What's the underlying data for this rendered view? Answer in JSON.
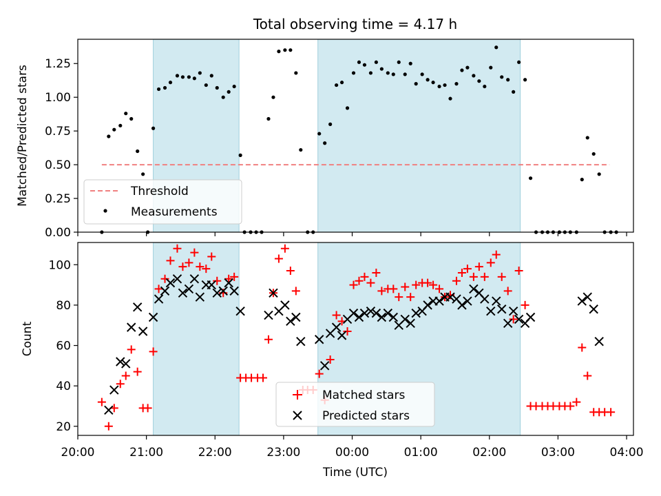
{
  "chart_data": [
    {
      "type": "scatter",
      "title": "Total observing time = 4.17 h",
      "ylabel": "Matched/Predicted stars",
      "ylim": [
        0,
        1.43
      ],
      "yticks": [
        0.0,
        0.25,
        0.5,
        0.75,
        1.0,
        1.25
      ],
      "ytick_labels": [
        "0.00",
        "0.25",
        "0.50",
        "0.75",
        "1.00",
        "1.25"
      ],
      "xlim_hours": [
        20.0,
        28.1
      ],
      "x_unit": "hours UTC since 20:00 of start day (values >24 are after midnight)",
      "shaded_intervals": [
        [
          21.1,
          22.35
        ],
        [
          23.5,
          26.45
        ]
      ],
      "shade_color": "#add8e6",
      "legend": {
        "position": "lower-left",
        "entries": [
          "Threshold",
          "Measurements"
        ]
      },
      "threshold": {
        "label": "Threshold",
        "value": 0.5,
        "x_range": [
          20.35,
          27.75
        ],
        "color": "#f08080"
      },
      "measurements": {
        "label": "Measurements",
        "color": "#000000",
        "points": [
          [
            20.35,
            0.0
          ],
          [
            20.45,
            0.71
          ],
          [
            20.53,
            0.76
          ],
          [
            20.62,
            0.79
          ],
          [
            20.7,
            0.88
          ],
          [
            20.78,
            0.84
          ],
          [
            20.87,
            0.6
          ],
          [
            20.95,
            0.43
          ],
          [
            21.02,
            0.0
          ],
          [
            21.1,
            0.77
          ],
          [
            21.18,
            1.06
          ],
          [
            21.27,
            1.07
          ],
          [
            21.35,
            1.11
          ],
          [
            21.45,
            1.16
          ],
          [
            21.53,
            1.15
          ],
          [
            21.62,
            1.15
          ],
          [
            21.7,
            1.14
          ],
          [
            21.78,
            1.18
          ],
          [
            21.87,
            1.09
          ],
          [
            21.95,
            1.16
          ],
          [
            22.03,
            1.07
          ],
          [
            22.12,
            1.0
          ],
          [
            22.2,
            1.04
          ],
          [
            22.28,
            1.08
          ],
          [
            22.37,
            0.57
          ],
          [
            22.43,
            0.0
          ],
          [
            22.52,
            0.0
          ],
          [
            22.6,
            0.0
          ],
          [
            22.68,
            0.0
          ],
          [
            22.78,
            0.84
          ],
          [
            22.85,
            1.0
          ],
          [
            22.93,
            1.34
          ],
          [
            23.02,
            1.35
          ],
          [
            23.1,
            1.35
          ],
          [
            23.18,
            1.18
          ],
          [
            23.25,
            0.61
          ],
          [
            23.35,
            0.0
          ],
          [
            23.43,
            0.0
          ],
          [
            23.52,
            0.73
          ],
          [
            23.6,
            0.66
          ],
          [
            23.68,
            0.8
          ],
          [
            23.77,
            1.09
          ],
          [
            23.85,
            1.11
          ],
          [
            23.93,
            0.92
          ],
          [
            24.02,
            1.18
          ],
          [
            24.1,
            1.26
          ],
          [
            24.18,
            1.24
          ],
          [
            24.27,
            1.18
          ],
          [
            24.35,
            1.26
          ],
          [
            24.43,
            1.21
          ],
          [
            24.52,
            1.18
          ],
          [
            24.6,
            1.17
          ],
          [
            24.68,
            1.26
          ],
          [
            24.77,
            1.17
          ],
          [
            24.85,
            1.25
          ],
          [
            24.93,
            1.1
          ],
          [
            25.02,
            1.17
          ],
          [
            25.1,
            1.13
          ],
          [
            25.18,
            1.11
          ],
          [
            25.27,
            1.08
          ],
          [
            25.35,
            1.09
          ],
          [
            25.43,
            0.99
          ],
          [
            25.52,
            1.1
          ],
          [
            25.6,
            1.2
          ],
          [
            25.68,
            1.22
          ],
          [
            25.77,
            1.16
          ],
          [
            25.85,
            1.12
          ],
          [
            25.93,
            1.08
          ],
          [
            26.02,
            1.22
          ],
          [
            26.1,
            1.37
          ],
          [
            26.18,
            1.15
          ],
          [
            26.27,
            1.13
          ],
          [
            26.35,
            1.04
          ],
          [
            26.43,
            1.26
          ],
          [
            26.52,
            1.13
          ],
          [
            26.6,
            0.4
          ],
          [
            26.68,
            0.0
          ],
          [
            26.77,
            0.0
          ],
          [
            26.85,
            0.0
          ],
          [
            26.93,
            0.0
          ],
          [
            27.02,
            0.0
          ],
          [
            27.1,
            0.0
          ],
          [
            27.18,
            0.0
          ],
          [
            27.27,
            0.0
          ],
          [
            27.35,
            0.39
          ],
          [
            27.43,
            0.7
          ],
          [
            27.52,
            0.58
          ],
          [
            27.6,
            0.43
          ],
          [
            27.68,
            0.0
          ],
          [
            27.77,
            0.0
          ],
          [
            27.85,
            0.0
          ]
        ]
      }
    },
    {
      "type": "scatter",
      "xlabel": "Time (UTC)",
      "ylabel": "Count",
      "ylim": [
        15.5,
        111
      ],
      "yticks": [
        20,
        40,
        60,
        80,
        100
      ],
      "xticks_hours": [
        20,
        21,
        22,
        23,
        24,
        25,
        26,
        27,
        28
      ],
      "xtick_labels": [
        "20:00",
        "21:00",
        "22:00",
        "23:00",
        "00:00",
        "01:00",
        "02:00",
        "03:00",
        "04:00"
      ],
      "shaded_intervals": [
        [
          21.1,
          22.35
        ],
        [
          23.5,
          26.45
        ]
      ],
      "shade_color": "#add8e6",
      "legend": {
        "position": "lower-center",
        "entries": [
          "Matched stars",
          "Predicted stars"
        ]
      },
      "series": [
        {
          "name": "Matched stars",
          "marker": "plus",
          "color": "#ff0000",
          "points": [
            [
              20.35,
              32
            ],
            [
              20.45,
              20
            ],
            [
              20.53,
              29
            ],
            [
              20.62,
              41
            ],
            [
              20.7,
              45
            ],
            [
              20.78,
              58
            ],
            [
              20.87,
              47
            ],
            [
              20.95,
              29
            ],
            [
              21.02,
              29
            ],
            [
              21.1,
              57
            ],
            [
              21.18,
              88
            ],
            [
              21.27,
              93
            ],
            [
              21.35,
              102
            ],
            [
              21.45,
              108
            ],
            [
              21.53,
              99
            ],
            [
              21.62,
              101
            ],
            [
              21.7,
              106
            ],
            [
              21.78,
              99
            ],
            [
              21.87,
              98
            ],
            [
              21.95,
              104
            ],
            [
              22.03,
              92
            ],
            [
              22.12,
              86
            ],
            [
              22.2,
              93
            ],
            [
              22.28,
              94
            ],
            [
              22.37,
              44
            ],
            [
              22.45,
              44
            ],
            [
              22.53,
              44
            ],
            [
              22.62,
              44
            ],
            [
              22.7,
              44
            ],
            [
              22.78,
              63
            ],
            [
              22.85,
              86
            ],
            [
              22.93,
              103
            ],
            [
              23.02,
              108
            ],
            [
              23.1,
              97
            ],
            [
              23.18,
              87
            ],
            [
              23.28,
              38
            ],
            [
              23.35,
              38
            ],
            [
              23.43,
              38
            ],
            [
              23.52,
              46
            ],
            [
              23.6,
              33
            ],
            [
              23.68,
              53
            ],
            [
              23.77,
              75
            ],
            [
              23.85,
              72
            ],
            [
              23.93,
              67
            ],
            [
              24.02,
              90
            ],
            [
              24.1,
              92
            ],
            [
              24.18,
              94
            ],
            [
              24.27,
              91
            ],
            [
              24.35,
              96
            ],
            [
              24.43,
              87
            ],
            [
              24.52,
              88
            ],
            [
              24.6,
              88
            ],
            [
              24.68,
              84
            ],
            [
              24.77,
              89
            ],
            [
              24.85,
              84
            ],
            [
              24.93,
              90
            ],
            [
              25.02,
              91
            ],
            [
              25.1,
              91
            ],
            [
              25.18,
              90
            ],
            [
              25.27,
              88
            ],
            [
              25.35,
              84
            ],
            [
              25.43,
              85
            ],
            [
              25.52,
              92
            ],
            [
              25.6,
              96
            ],
            [
              25.68,
              98
            ],
            [
              25.77,
              94
            ],
            [
              25.85,
              99
            ],
            [
              25.93,
              94
            ],
            [
              26.02,
              101
            ],
            [
              26.1,
              105
            ],
            [
              26.18,
              94
            ],
            [
              26.27,
              87
            ],
            [
              26.35,
              73
            ],
            [
              26.43,
              97
            ],
            [
              26.52,
              80
            ],
            [
              26.6,
              30
            ],
            [
              26.68,
              30
            ],
            [
              26.77,
              30
            ],
            [
              26.85,
              30
            ],
            [
              26.93,
              30
            ],
            [
              27.02,
              30
            ],
            [
              27.1,
              30
            ],
            [
              27.18,
              30
            ],
            [
              27.27,
              32
            ],
            [
              27.35,
              59
            ],
            [
              27.43,
              45
            ],
            [
              27.52,
              27
            ],
            [
              27.6,
              27
            ],
            [
              27.68,
              27
            ],
            [
              27.77,
              27
            ]
          ]
        },
        {
          "name": "Predicted stars",
          "marker": "x",
          "color": "#000000",
          "points": [
            [
              20.45,
              28
            ],
            [
              20.53,
              38
            ],
            [
              20.62,
              52
            ],
            [
              20.7,
              51
            ],
            [
              20.78,
              69
            ],
            [
              20.87,
              79
            ],
            [
              20.95,
              67
            ],
            [
              21.1,
              74
            ],
            [
              21.18,
              83
            ],
            [
              21.27,
              87
            ],
            [
              21.35,
              91
            ],
            [
              21.45,
              93
            ],
            [
              21.53,
              86
            ],
            [
              21.62,
              88
            ],
            [
              21.7,
              93
            ],
            [
              21.78,
              84
            ],
            [
              21.87,
              90
            ],
            [
              21.95,
              90
            ],
            [
              22.03,
              86
            ],
            [
              22.12,
              87
            ],
            [
              22.2,
              91
            ],
            [
              22.28,
              87
            ],
            [
              22.37,
              77
            ],
            [
              22.78,
              75
            ],
            [
              22.85,
              86
            ],
            [
              22.93,
              77
            ],
            [
              23.02,
              80
            ],
            [
              23.1,
              72
            ],
            [
              23.18,
              74
            ],
            [
              23.25,
              62
            ],
            [
              23.52,
              63
            ],
            [
              23.6,
              50
            ],
            [
              23.68,
              66
            ],
            [
              23.77,
              69
            ],
            [
              23.85,
              65
            ],
            [
              23.93,
              73
            ],
            [
              24.02,
              76
            ],
            [
              24.1,
              74
            ],
            [
              24.18,
              76
            ],
            [
              24.27,
              77
            ],
            [
              24.35,
              76
            ],
            [
              24.43,
              74
            ],
            [
              24.52,
              76
            ],
            [
              24.6,
              74
            ],
            [
              24.68,
              70
            ],
            [
              24.77,
              73
            ],
            [
              24.85,
              71
            ],
            [
              24.93,
              76
            ],
            [
              25.02,
              77
            ],
            [
              25.1,
              80
            ],
            [
              25.18,
              82
            ],
            [
              25.27,
              82
            ],
            [
              25.35,
              84
            ],
            [
              25.43,
              84
            ],
            [
              25.52,
              83
            ],
            [
              25.6,
              80
            ],
            [
              25.68,
              82
            ],
            [
              25.77,
              88
            ],
            [
              25.85,
              86
            ],
            [
              25.93,
              83
            ],
            [
              26.02,
              77
            ],
            [
              26.1,
              82
            ],
            [
              26.18,
              78
            ],
            [
              26.27,
              71
            ],
            [
              26.35,
              77
            ],
            [
              26.43,
              73
            ],
            [
              26.52,
              71
            ],
            [
              26.6,
              74
            ],
            [
              27.35,
              82
            ],
            [
              27.43,
              84
            ],
            [
              27.52,
              78
            ],
            [
              27.6,
              62
            ]
          ]
        }
      ]
    }
  ]
}
